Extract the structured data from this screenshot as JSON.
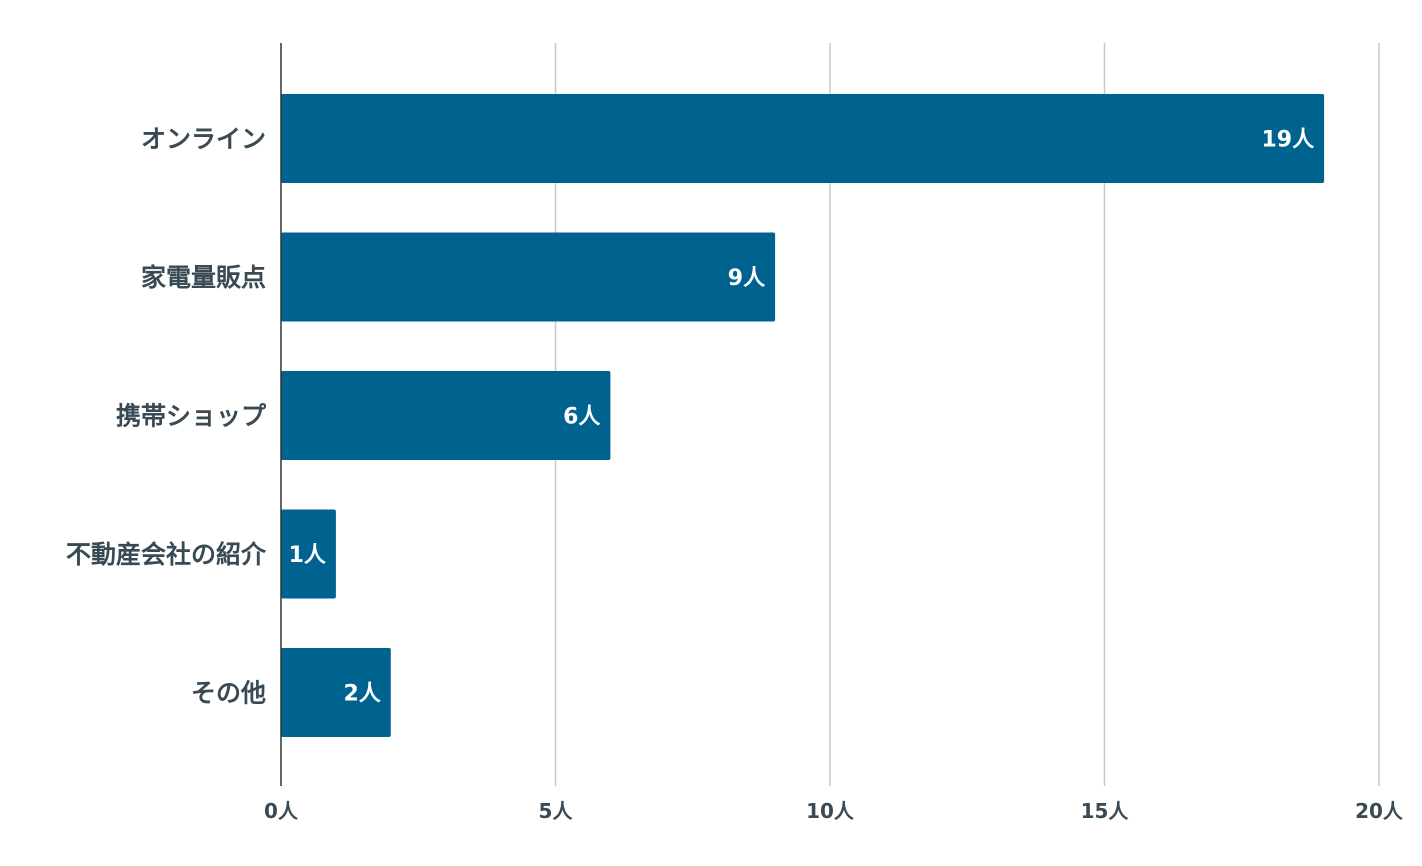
{
  "chart_data": {
    "type": "bar",
    "orientation": "horizontal",
    "title": "",
    "xlabel": "",
    "ylabel": "",
    "categories": [
      "オンライン",
      "家電量販点",
      "携帯ショップ",
      "不動産会社の紹介",
      "その他"
    ],
    "values": [
      19,
      9,
      6,
      1,
      2
    ],
    "data_labels": [
      "19人",
      "9人",
      "6人",
      "1人",
      "2人"
    ],
    "xlim": [
      0,
      20
    ],
    "ticks": [
      0,
      5,
      10,
      15,
      20
    ],
    "tick_labels": [
      "0人",
      "5人",
      "10人",
      "15人",
      "20人"
    ],
    "grid": true,
    "legend": "none",
    "bar_color": "#00628f"
  }
}
